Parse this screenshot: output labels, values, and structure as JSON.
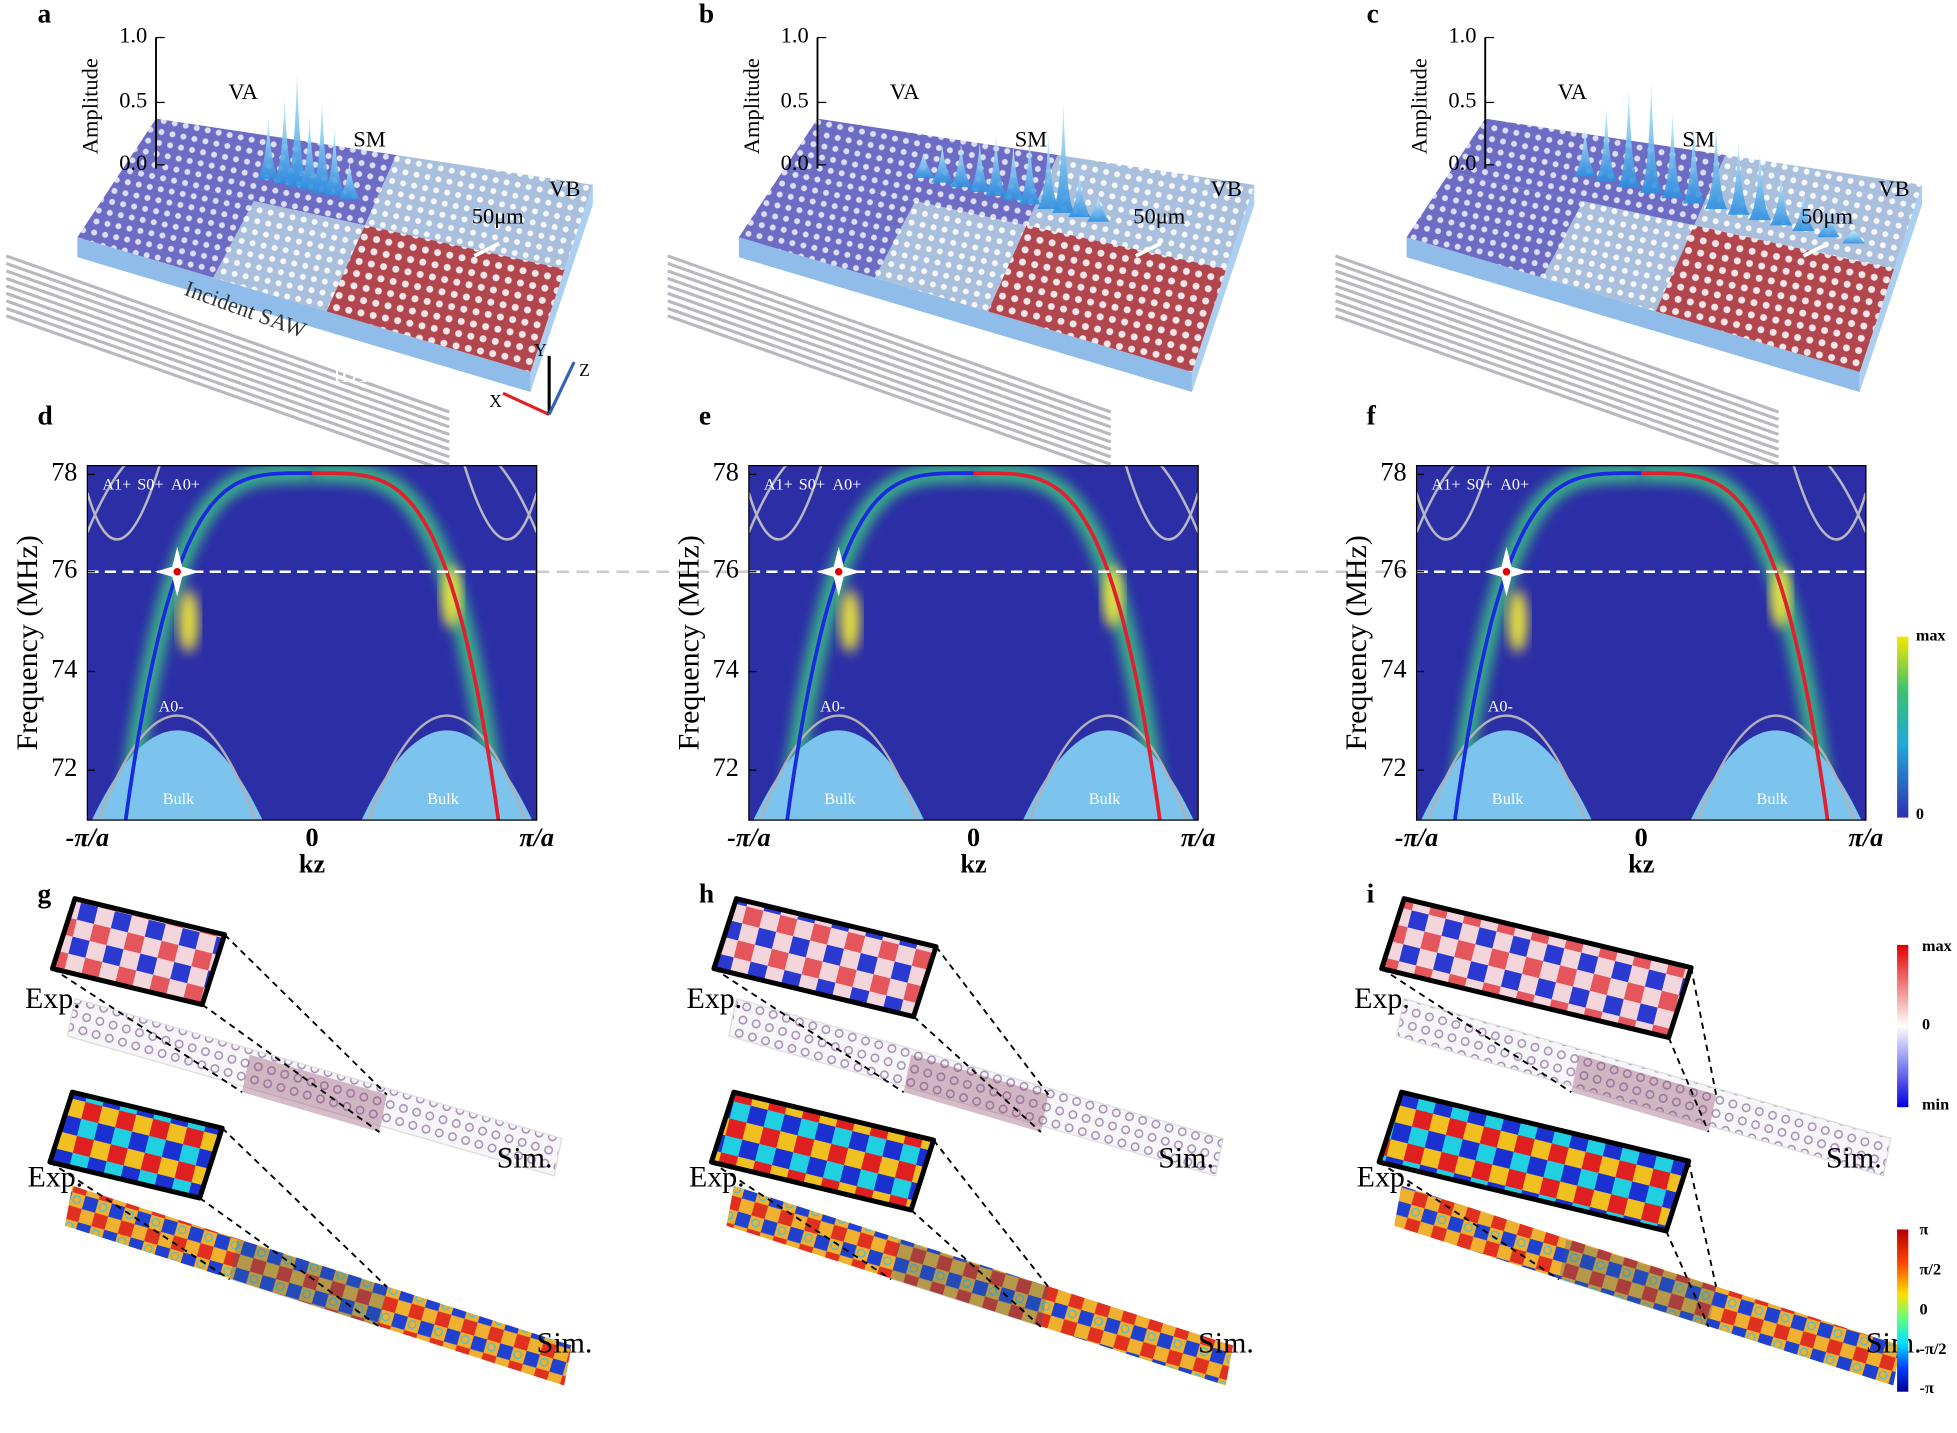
{
  "panel_labels": [
    "a",
    "b",
    "c",
    "d",
    "e",
    "f",
    "g",
    "h",
    "i"
  ],
  "amplitude_axis": {
    "label": "Amplitude",
    "ticks": [
      "1.0",
      "0.5",
      "0.0"
    ]
  },
  "regions": [
    "VA",
    "SM",
    "VB"
  ],
  "scale_bar": "50μm",
  "incident": "Incident SAW",
  "idts": "IDTs",
  "axes": [
    "X",
    "Y",
    "Z"
  ],
  "dispersion": {
    "y_label": "Frequency (MHz)",
    "x_label": "kz",
    "yticks": [
      "78",
      "76",
      "74",
      "72"
    ],
    "xticks": [
      "-π/a",
      "0",
      "π/a"
    ],
    "mode_labels": [
      "A1+",
      "S0+",
      "A0+"
    ],
    "lower_mode": "A0-",
    "bulk": "Bulk",
    "colorbar": [
      "max",
      "0"
    ]
  },
  "field_maps": {
    "exp": "Exp.",
    "sim": "Sim.",
    "amplitude_colorbar": [
      "max",
      "0",
      "min"
    ],
    "phase_colorbar": [
      "π",
      "π/2",
      "0",
      "-π/2",
      "-π"
    ]
  }
}
